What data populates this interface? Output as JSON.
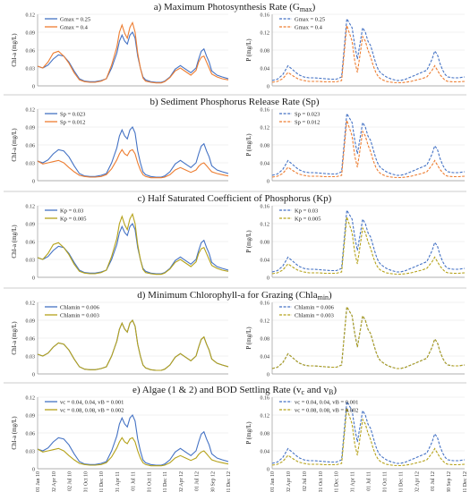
{
  "x_ticks": [
    "01 Jan 10",
    "02 Apr 10",
    "02 Jul 10",
    "01 Oct 10",
    "31 Dec 10",
    "01 Apr 11",
    "01 Jul 11",
    "01 Oct 11",
    "31 Dec 11",
    "02 Apr 12",
    "01 Jul 12",
    "30 Sep 12",
    "31 Dec 12"
  ],
  "panels": [
    {
      "title": "a) Maximum Photosynthesis Rate (G",
      "title_sub": "max",
      "title_end": ")",
      "chla": {
        "ylabel": "Chl-a (mg/L)",
        "ylim": [
          0,
          0.12
        ],
        "yticks": [
          "0",
          "0.03",
          "0.06",
          "0.09",
          "0.12"
        ],
        "series": [
          {
            "name": "Gmax = 0.25",
            "color": "#4472C4"
          },
          {
            "name": "Gmax = 0.4",
            "color": "#ED7D31"
          }
        ]
      },
      "phos": {
        "ylabel": "P (mg/L)",
        "ylim": [
          0,
          0.16
        ],
        "yticks": [
          "0",
          "0.04",
          "0.08",
          "0.12",
          "0.16"
        ],
        "series": [
          {
            "name": "Gmax = 0.25",
            "color": "#4472C4"
          },
          {
            "name": "Gmax = 0.4",
            "color": "#ED7D31"
          }
        ]
      }
    },
    {
      "title": "b) Sediment Phosphorus Release Rate (Sp)",
      "title_sub": "",
      "title_end": "",
      "chla": {
        "ylabel": "Chl-a (mg/L)",
        "ylim": [
          0,
          0.12
        ],
        "yticks": [
          "0",
          "0.03",
          "0.06",
          "0.09",
          "0.12"
        ],
        "series": [
          {
            "name": "Sp = 0.023",
            "color": "#4472C4"
          },
          {
            "name": "Sp = 0.012",
            "color": "#ED7D31"
          }
        ]
      },
      "phos": {
        "ylabel": "P (mg/L)",
        "ylim": [
          0,
          0.16
        ],
        "yticks": [
          "0",
          "0.04",
          "0.08",
          "0.12",
          "0.16"
        ],
        "series": [
          {
            "name": "Sp = 0.023",
            "color": "#4472C4"
          },
          {
            "name": "Sp = 0.012",
            "color": "#ED7D31"
          }
        ]
      }
    },
    {
      "title": "c) Half Saturated Coefficient of Phosphorus (Kp)",
      "title_sub": "",
      "title_end": "",
      "chla": {
        "ylabel": "Chl-a (mg/L)",
        "ylim": [
          0,
          0.12
        ],
        "yticks": [
          "0",
          "0.03",
          "0.06",
          "0.09",
          "0.12"
        ],
        "series": [
          {
            "name": "Kp = 0.03",
            "color": "#4472C4"
          },
          {
            "name": "Kp = 0.005",
            "color": "#B5A21A"
          }
        ]
      },
      "phos": {
        "ylabel": "P (mg/L)",
        "ylim": [
          0,
          0.16
        ],
        "yticks": [
          "0",
          "0.04",
          "0.08",
          "0.12",
          "0.16"
        ],
        "series": [
          {
            "name": "Kp = 0.03",
            "color": "#4472C4"
          },
          {
            "name": "Kp = 0.005",
            "color": "#B5A21A"
          }
        ]
      }
    },
    {
      "title": "d) Minimum Chlorophyll-a for Grazing (Chla",
      "title_sub": "min",
      "title_end": ")",
      "chla": {
        "ylabel": "Chl-a (mg/L)",
        "ylim": [
          0,
          0.12
        ],
        "yticks": [
          "0",
          "0.03",
          "0.06",
          "0.09",
          "0.12"
        ],
        "series": [
          {
            "name": "Chlamin = 0.006",
            "color": "#4472C4"
          },
          {
            "name": "Chlamin = 0.003",
            "color": "#B5A21A"
          }
        ]
      },
      "phos": {
        "ylabel": "P (mg/L)",
        "ylim": [
          0,
          0.16
        ],
        "yticks": [
          "0",
          "0.04",
          "0.08",
          "0.12",
          "0.16"
        ],
        "series": [
          {
            "name": "Chlamin = 0.006",
            "color": "#4472C4"
          },
          {
            "name": "Chlamin = 0.003",
            "color": "#B5A21A"
          }
        ]
      }
    },
    {
      "title": "e) Algae (1 & 2) and BOD Settling Rate (v",
      "title_sub": "c",
      "title_end": " and v",
      "title_sub2": "B",
      "title_end2": ")",
      "chla": {
        "ylabel": "Chl-a (mg/L)",
        "ylim": [
          0,
          0.12
        ],
        "yticks": [
          "0",
          "0.03",
          "0.06",
          "0.09",
          "0.12"
        ],
        "series": [
          {
            "name": "vc = 0.04, 0.04, vB = 0.001",
            "color": "#4472C4"
          },
          {
            "name": "vc = 0.08, 0.08, vB = 0.002",
            "color": "#B5A21A"
          }
        ]
      },
      "phos": {
        "ylabel": "P (mg/L)",
        "ylim": [
          0,
          0.16
        ],
        "yticks": [
          "0",
          "0.04",
          "0.08",
          "0.12",
          "0.16"
        ],
        "series": [
          {
            "name": "vc = 0.04, 0.04, vB = 0.001",
            "color": "#4472C4"
          },
          {
            "name": "vc = 0.08, 0.08, vB = 0.002",
            "color": "#B5A21A"
          }
        ]
      }
    }
  ],
  "chart_data": {
    "type": "line",
    "x_unit": "days since 01 Jan 10",
    "x": [
      0,
      30,
      60,
      90,
      120,
      150,
      180,
      210,
      240,
      270,
      300,
      330,
      365,
      395,
      425,
      455,
      470,
      485,
      500,
      515,
      530,
      545,
      560,
      575,
      590,
      605,
      620,
      650,
      680,
      710,
      730,
      760,
      790,
      820,
      850,
      880,
      910,
      925,
      940,
      955,
      970,
      985,
      1000,
      1030,
      1060,
      1095
    ],
    "chla_base": [
      0.033,
      0.03,
      0.035,
      0.045,
      0.052,
      0.05,
      0.04,
      0.025,
      0.012,
      0.008,
      0.007,
      0.007,
      0.009,
      0.012,
      0.03,
      0.055,
      0.075,
      0.085,
      0.075,
      0.07,
      0.085,
      0.09,
      0.08,
      0.05,
      0.03,
      0.015,
      0.01,
      0.007,
      0.006,
      0.006,
      0.008,
      0.015,
      0.028,
      0.034,
      0.028,
      0.022,
      0.03,
      0.045,
      0.058,
      0.062,
      0.05,
      0.04,
      0.025,
      0.018,
      0.015,
      0.012
    ],
    "chla_low": [
      0.033,
      0.028,
      0.03,
      0.032,
      0.034,
      0.03,
      0.022,
      0.015,
      0.009,
      0.007,
      0.006,
      0.006,
      0.007,
      0.01,
      0.02,
      0.035,
      0.045,
      0.052,
      0.045,
      0.042,
      0.05,
      0.052,
      0.045,
      0.03,
      0.018,
      0.01,
      0.007,
      0.005,
      0.005,
      0.005,
      0.006,
      0.01,
      0.018,
      0.022,
      0.018,
      0.014,
      0.018,
      0.024,
      0.028,
      0.03,
      0.025,
      0.02,
      0.015,
      0.012,
      0.01,
      0.008
    ],
    "chla_high": [
      0.033,
      0.03,
      0.04,
      0.055,
      0.058,
      0.05,
      0.038,
      0.022,
      0.01,
      0.007,
      0.006,
      0.006,
      0.008,
      0.012,
      0.035,
      0.065,
      0.09,
      0.102,
      0.088,
      0.08,
      0.098,
      0.106,
      0.09,
      0.055,
      0.03,
      0.013,
      0.008,
      0.006,
      0.005,
      0.005,
      0.007,
      0.014,
      0.025,
      0.03,
      0.024,
      0.018,
      0.026,
      0.04,
      0.048,
      0.05,
      0.04,
      0.03,
      0.02,
      0.015,
      0.012,
      0.01
    ],
    "p_base": [
      0.012,
      0.015,
      0.025,
      0.045,
      0.035,
      0.025,
      0.02,
      0.018,
      0.018,
      0.017,
      0.016,
      0.015,
      0.015,
      0.02,
      0.15,
      0.13,
      0.09,
      0.06,
      0.095,
      0.13,
      0.12,
      0.1,
      0.09,
      0.07,
      0.05,
      0.035,
      0.028,
      0.02,
      0.015,
      0.012,
      0.012,
      0.015,
      0.02,
      0.025,
      0.03,
      0.035,
      0.06,
      0.078,
      0.07,
      0.05,
      0.035,
      0.025,
      0.02,
      0.018,
      0.018,
      0.02
    ],
    "p_low": [
      0.008,
      0.01,
      0.016,
      0.03,
      0.022,
      0.015,
      0.012,
      0.01,
      0.01,
      0.01,
      0.009,
      0.009,
      0.009,
      0.012,
      0.135,
      0.1,
      0.055,
      0.03,
      0.07,
      0.11,
      0.1,
      0.08,
      0.065,
      0.045,
      0.03,
      0.02,
      0.015,
      0.01,
      0.008,
      0.007,
      0.007,
      0.008,
      0.01,
      0.013,
      0.016,
      0.02,
      0.035,
      0.045,
      0.035,
      0.025,
      0.018,
      0.012,
      0.01,
      0.009,
      0.009,
      0.01
    ]
  }
}
